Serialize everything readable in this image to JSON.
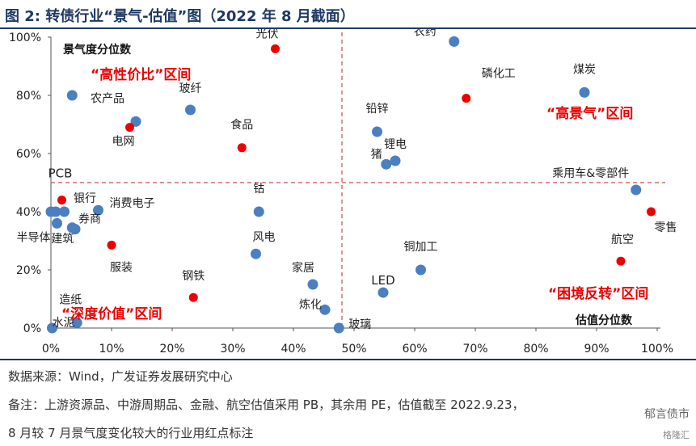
{
  "header": {
    "title": "图 2:  转债行业“景气-估值”图（2022 年 8 月截面）"
  },
  "footer": {
    "source": "数据来源：Wind，广发证券发展研究中心",
    "note": "备注：上游资源品、中游周期品、金融、航空估值采用 PB，其余用 PE，估值截至 2022.9.23，",
    "note2": "8 月较 7 月景气度变化较大的行业用红点标注",
    "watermark": "郁言债市",
    "watermark2": "格隆汇"
  },
  "colors": {
    "blue": "#4a7fc1",
    "red": "#ee0000",
    "axis": "#555555",
    "divider": "#c0504d",
    "region_text": "#ee0000"
  },
  "chart_data": {
    "type": "scatter",
    "xlabel": "估值分位数",
    "ylabel": "景气度分位数",
    "xlim": [
      0,
      1
    ],
    "ylim": [
      0,
      1
    ],
    "x_ticks": [
      "0%",
      "10%",
      "20%",
      "30%",
      "40%",
      "50%",
      "60%",
      "70%",
      "80%",
      "90%",
      "100%"
    ],
    "y_ticks": [
      "0%",
      "20%",
      "40%",
      "60%",
      "80%",
      "100%"
    ],
    "dividers": {
      "x": 0.48,
      "y": 0.5
    },
    "regions": [
      "“高性价比”区间",
      "“高景气”区间",
      "“深度价值”区间",
      "“困境反转”区间"
    ],
    "points": [
      {
        "label": "光伏",
        "x": 0.37,
        "y": 0.96,
        "highlight": true
      },
      {
        "label": "农药",
        "x": 0.665,
        "y": 0.985,
        "highlight": false
      },
      {
        "label": "磷化工",
        "x": 0.685,
        "y": 0.79,
        "highlight": true
      },
      {
        "label": "煤炭",
        "x": 0.88,
        "y": 0.81,
        "highlight": false
      },
      {
        "label": "",
        "x": 0.035,
        "y": 0.8,
        "highlight": false
      },
      {
        "label": "玻纤",
        "x": 0.23,
        "y": 0.75,
        "highlight": false
      },
      {
        "label": "农产品",
        "x": 0.14,
        "y": 0.71,
        "highlight": false
      },
      {
        "label": "电网",
        "x": 0.13,
        "y": 0.69,
        "highlight": true
      },
      {
        "label": "食品",
        "x": 0.315,
        "y": 0.62,
        "highlight": true
      },
      {
        "label": "铅锌",
        "x": 0.538,
        "y": 0.675,
        "highlight": false
      },
      {
        "label": "锂电",
        "x": 0.568,
        "y": 0.575,
        "highlight": false
      },
      {
        "label": "猪",
        "x": 0.553,
        "y": 0.563,
        "highlight": false
      },
      {
        "label": "乘用车&零部件",
        "x": 0.965,
        "y": 0.475,
        "highlight": false
      },
      {
        "label": "零售",
        "x": 0.99,
        "y": 0.4,
        "highlight": true
      },
      {
        "label": "PCB",
        "x": 0.018,
        "y": 0.44,
        "highlight": true
      },
      {
        "label": "银行",
        "x": 0.008,
        "y": 0.4,
        "highlight": false
      },
      {
        "label": "",
        "x": 0.0,
        "y": 0.4,
        "highlight": false
      },
      {
        "label": "",
        "x": 0.022,
        "y": 0.4,
        "highlight": false
      },
      {
        "label": "消费电子",
        "x": 0.078,
        "y": 0.405,
        "highlight": false
      },
      {
        "label": "半导体",
        "x": 0.01,
        "y": 0.36,
        "highlight": false
      },
      {
        "label": "券商",
        "x": 0.04,
        "y": 0.34,
        "highlight": false
      },
      {
        "label": "钴",
        "x": 0.343,
        "y": 0.4,
        "highlight": false
      },
      {
        "label": "建筑",
        "x": 0.035,
        "y": 0.345,
        "highlight": false
      },
      {
        "label": "服装",
        "x": 0.1,
        "y": 0.285,
        "highlight": true
      },
      {
        "label": "风电",
        "x": 0.338,
        "y": 0.255,
        "highlight": false
      },
      {
        "label": "铜加工",
        "x": 0.61,
        "y": 0.2,
        "highlight": false
      },
      {
        "label": "航空",
        "x": 0.94,
        "y": 0.23,
        "highlight": true
      },
      {
        "label": "钢铁",
        "x": 0.235,
        "y": 0.105,
        "highlight": true
      },
      {
        "label": "家居",
        "x": 0.432,
        "y": 0.15,
        "highlight": false
      },
      {
        "label": "LED",
        "x": 0.548,
        "y": 0.122,
        "highlight": false
      },
      {
        "label": "炼化",
        "x": 0.452,
        "y": 0.063,
        "highlight": false
      },
      {
        "label": "造纸",
        "x": 0.043,
        "y": 0.018,
        "highlight": false
      },
      {
        "label": "水泥",
        "x": 0.002,
        "y": 0.0,
        "highlight": false
      },
      {
        "label": "玻璃",
        "x": 0.475,
        "y": 0.0,
        "highlight": false
      }
    ]
  }
}
